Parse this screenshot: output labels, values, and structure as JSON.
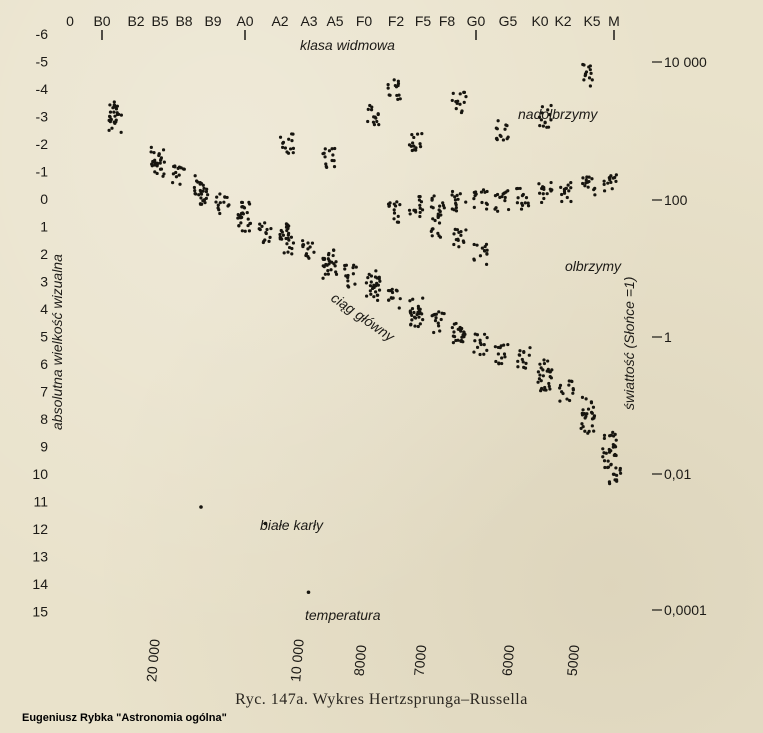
{
  "chart_data": {
    "type": "scatter",
    "title": "klasa widmowa",
    "caption": "Ryc. 147a. Wykres Hertzsprunga–Russella",
    "credit": "Eugeniusz Rybka \"Astronomia ogólna\"",
    "ylabel_left": "absolutna wielkość wizualna",
    "ylabel_right": "świattość (Słońce =1)",
    "xlabel_bottom": "temperatura",
    "top_tick_labels": [
      "0",
      "B0",
      "B2",
      "B5",
      "B8",
      "B9",
      "A0",
      "A2",
      "A3",
      "A5",
      "F0",
      "F2",
      "F5",
      "F8",
      "G0",
      "G5",
      "K0",
      "K2",
      "K5",
      "M"
    ],
    "left_tick_labels": [
      "-6",
      "-5",
      "-4",
      "-3",
      "-2",
      "-1",
      "0",
      "1",
      "2",
      "3",
      "4",
      "5",
      "6",
      "7",
      "8",
      "9",
      "10",
      "11",
      "12",
      "13",
      "14",
      "15"
    ],
    "right_tick_labels": [
      "10 000",
      "100",
      "1",
      "0,01",
      "0,0001"
    ],
    "bottom_tick_labels": [
      "20 000",
      "10 000",
      "8000",
      "7000",
      "6000",
      "5000"
    ],
    "ylim": [
      -6,
      15
    ],
    "annotations": [
      "nadolbrzymy",
      "olbrzymy",
      "ciąg główny",
      "białe karły"
    ],
    "series": [
      {
        "name": "main sequence",
        "points": [
          [
            1,
            -2.8
          ],
          [
            1,
            -3.2
          ],
          [
            2,
            -1.2
          ],
          [
            2,
            -1.6
          ],
          [
            2.5,
            -0.8
          ],
          [
            3,
            -0.5
          ],
          [
            3,
            -0.2
          ],
          [
            3.5,
            0.2
          ],
          [
            4,
            0.5
          ],
          [
            4,
            0.8
          ],
          [
            4.5,
            1.2
          ],
          [
            5,
            1.3
          ],
          [
            5,
            1.6
          ],
          [
            5.5,
            1.8
          ],
          [
            6,
            2.2
          ],
          [
            6,
            2.5
          ],
          [
            6.5,
            2.8
          ],
          [
            7,
            3.0
          ],
          [
            7,
            3.3
          ],
          [
            7.5,
            3.6
          ],
          [
            8,
            4.0
          ],
          [
            8,
            4.3
          ],
          [
            8.5,
            4.5
          ],
          [
            9,
            4.8
          ],
          [
            9,
            5.0
          ],
          [
            9.5,
            5.3
          ],
          [
            10,
            5.6
          ],
          [
            10.5,
            5.8
          ],
          [
            11,
            6.2
          ],
          [
            11,
            6.6
          ],
          [
            11.5,
            7.0
          ],
          [
            12,
            7.6
          ],
          [
            12,
            8.2
          ],
          [
            12.5,
            8.8
          ],
          [
            12.5,
            9.5
          ],
          [
            12.6,
            10.0
          ]
        ]
      },
      {
        "name": "giants",
        "points": [
          [
            7.5,
            0.5
          ],
          [
            8,
            0.3
          ],
          [
            8.5,
            0.2
          ],
          [
            9,
            0.1
          ],
          [
            9.5,
            0.0
          ],
          [
            10,
            0.1
          ],
          [
            10.5,
            0.0
          ],
          [
            11,
            -0.2
          ],
          [
            11.5,
            -0.3
          ],
          [
            12,
            -0.5
          ],
          [
            12.5,
            -0.6
          ],
          [
            8.5,
            1.0
          ],
          [
            9,
            1.5
          ],
          [
            9.5,
            2.0
          ]
        ]
      },
      {
        "name": "supergiants",
        "points": [
          [
            7,
            -3
          ],
          [
            7.5,
            -4
          ],
          [
            8,
            -2
          ],
          [
            9,
            -3.5
          ],
          [
            10,
            -2.5
          ],
          [
            11,
            -3
          ],
          [
            6,
            -1.5
          ],
          [
            5,
            -2
          ],
          [
            12,
            -4.5
          ]
        ]
      },
      {
        "name": "white dwarfs",
        "points": [
          [
            3,
            11.2
          ],
          [
            4.5,
            11.8
          ],
          [
            5.5,
            14.3
          ]
        ]
      }
    ]
  }
}
